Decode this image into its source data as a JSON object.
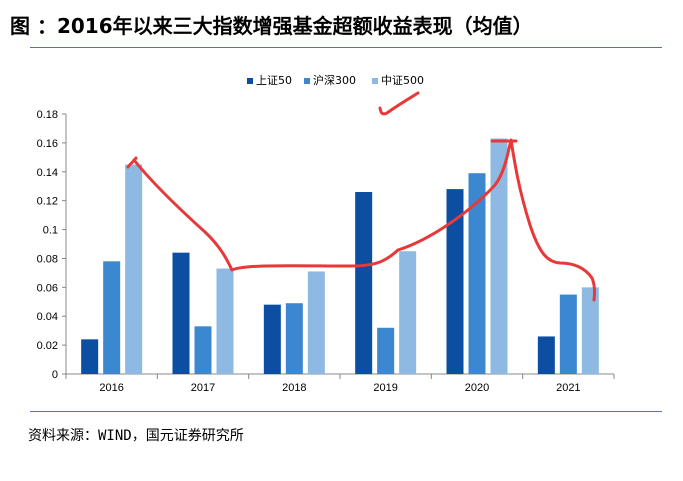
{
  "page": {
    "title": "图 ：2016年以来三大指数增强基金超额收益表现（均值）",
    "source": "资料来源：WIND，国元证券研究所"
  },
  "colors": {
    "rule": "#4a78b5",
    "annotation": "#e8393a"
  },
  "chart_data": {
    "type": "bar",
    "categories": [
      "2016",
      "2017",
      "2018",
      "2019",
      "2020",
      "2021"
    ],
    "series": [
      {
        "name": "上证50",
        "color": "#0b4ea2",
        "values": [
          0.024,
          0.084,
          0.048,
          0.126,
          0.128,
          0.026
        ]
      },
      {
        "name": "沪深300",
        "color": "#3b87d0",
        "values": [
          0.078,
          0.033,
          0.049,
          0.032,
          0.139,
          0.055
        ]
      },
      {
        "name": "中证500",
        "color": "#8eb9e3",
        "values": [
          0.145,
          0.073,
          0.071,
          0.085,
          0.163,
          0.06
        ]
      }
    ],
    "ylim": [
      0,
      0.18
    ],
    "yticks": [
      0,
      0.02,
      0.04,
      0.06,
      0.08,
      0.1,
      0.12,
      0.14,
      0.16,
      0.18
    ],
    "ytick_labels": [
      "0",
      "0.02",
      "0.04",
      "0.06",
      "0.08",
      "0.1",
      "0.12",
      "0.14",
      "0.16",
      "0.18"
    ],
    "legend_position": "top-center",
    "grid": false
  }
}
